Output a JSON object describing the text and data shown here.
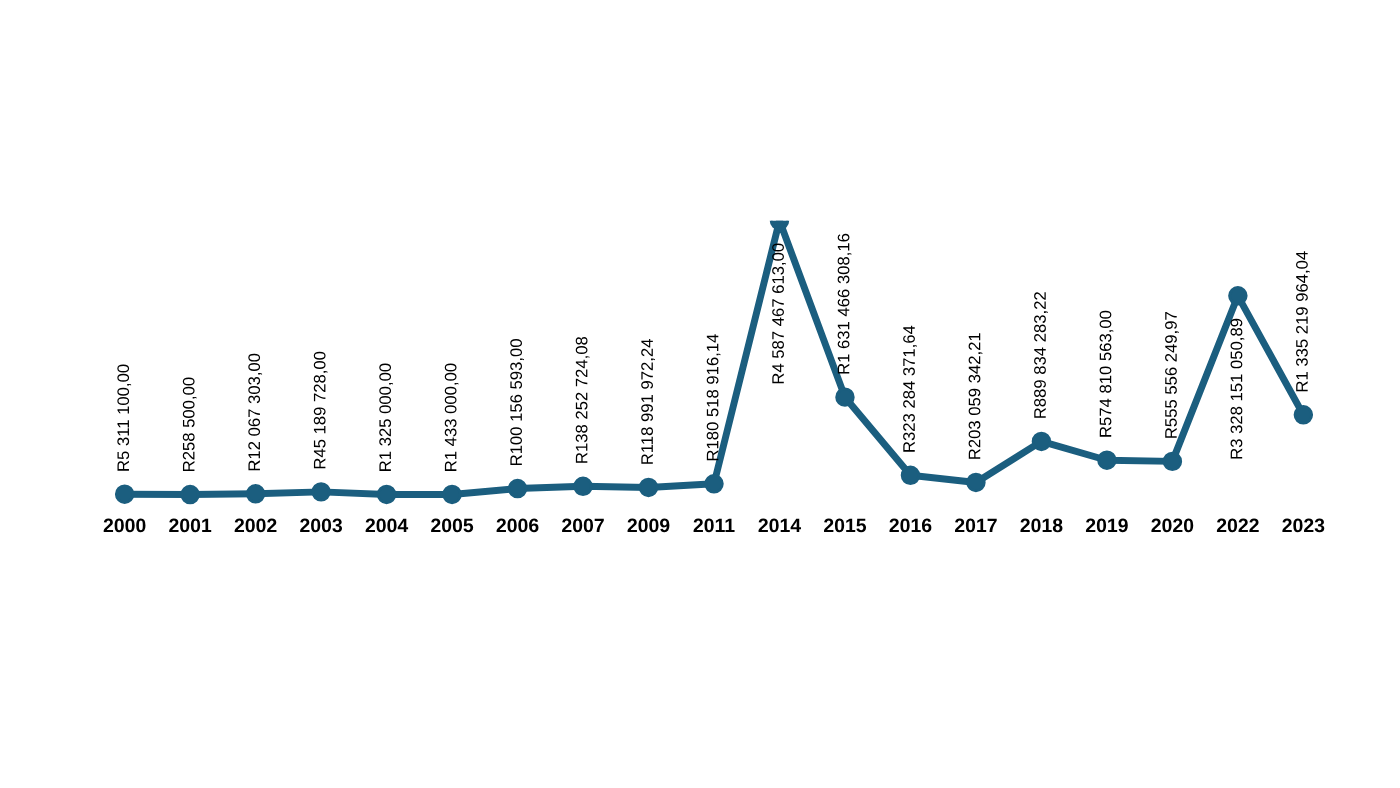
{
  "chart_data": {
    "type": "line",
    "categories": [
      "2000",
      "2001",
      "2002",
      "2003",
      "2004",
      "2005",
      "2006",
      "2007",
      "2009",
      "2011",
      "2014",
      "2015",
      "2016",
      "2017",
      "2018",
      "2019",
      "2020",
      "2022",
      "2023"
    ],
    "series": [
      {
        "color": "#1b5e7f",
        "values": [
          5311100,
          258500,
          12067303,
          45189728,
          1325000,
          1433000,
          100156593,
          138252724.08,
          118991972.24,
          180518916.14,
          4587467613,
          1631466308.16,
          323284371.64,
          203059342.21,
          889834283.22,
          574810563,
          555556249.97,
          3328151050.89,
          1335219964.04
        ],
        "value_labels": [
          "R5 311 100,00",
          "R258 500,00",
          "R12 067 303,00",
          "R45 189 728,00",
          "R1 325 000,00",
          "R1 433 000,00",
          "R100 156 593,00",
          "R138 252 724,08",
          "R118 991 972,24",
          "R180 518 916,14",
          "R4 587 467 613,00",
          "R1 631 466 308,16",
          "R323 284 371,64",
          "R203 059 342,21",
          "R889 834 283,22",
          "R574 810 563,00",
          "R555 556 249,97",
          "R3 328 151 050,89",
          "R1 335 219 964,04"
        ]
      }
    ],
    "tick_labels": "x",
    "marker": "circle",
    "line_style": "solid"
  }
}
